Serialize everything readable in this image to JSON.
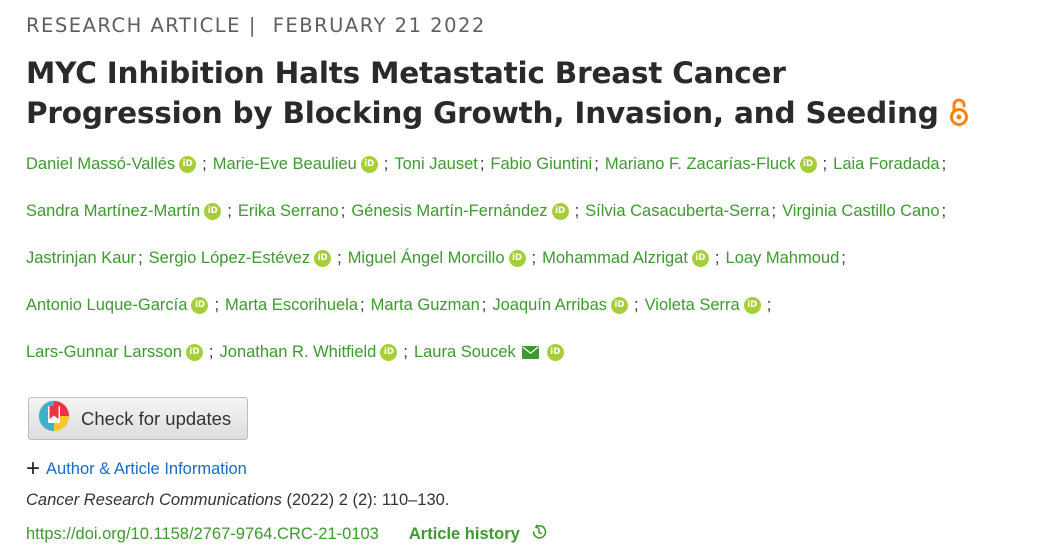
{
  "header": {
    "article_type": "RESEARCH ARTICLE",
    "separator": "|",
    "date": "FEBRUARY 21 2022"
  },
  "title": {
    "line1": "MYC Inhibition Halts Metastatic Breast Cancer",
    "line2": "Progression by Blocking Growth, Invasion, and Seeding",
    "open_access_icon": "open-access-lock-icon",
    "open_access_color": "#f68212"
  },
  "authors": [
    [
      "Daniel Massó-Vallés",
      "Marie-Eve Beaulieu",
      "Toni Jauset",
      "Fabio Giuntini",
      "Mariano F. Zacarías-Fluck",
      "Laia Foradada"
    ],
    [
      "Sandra Martínez-Martín",
      "Erika Serrano",
      "Génesis Martín-Fernández",
      "Sílvia Casacuberta-Serra",
      "Virginia Castillo Cano"
    ],
    [
      "Jastrinjan Kaur",
      "Sergio López-Estévez",
      "Miguel Ángel Morcillo",
      "Mohammad Alzrigat",
      "Loay Mahmoud"
    ],
    [
      "Antonio Luque-García",
      "Marta Escorihuela",
      "Marta Guzman",
      "Joaquín Arribas",
      "Violeta Serra"
    ],
    [
      "Lars-Gunnar Larsson",
      "Jonathan R. Whitfield",
      "Laura Soucek"
    ]
  ],
  "orcid_flags": [
    [
      true,
      true,
      false,
      false,
      true,
      false
    ],
    [
      true,
      false,
      true,
      false,
      false
    ],
    [
      false,
      true,
      true,
      true,
      false
    ],
    [
      true,
      false,
      false,
      true,
      true
    ],
    [
      true,
      true,
      true
    ]
  ],
  "orcid_icon_text": "iD",
  "orcid_color": "#a6ce39",
  "author_link_color": "#3c9a2e",
  "check_updates": {
    "label": "Check for updates",
    "icon": "crossmark-icon"
  },
  "author_info": {
    "expand_icon": "plus-icon",
    "label": "Author & Article Information"
  },
  "citation": {
    "journal": "Cancer Research Communications",
    "details": " (2022) 2 (2): 110–130."
  },
  "doi": "https://doi.org/10.1158/2767-9764.CRC-21-0103",
  "article_history": {
    "label": "Article history",
    "icon": "history-clock-icon"
  }
}
